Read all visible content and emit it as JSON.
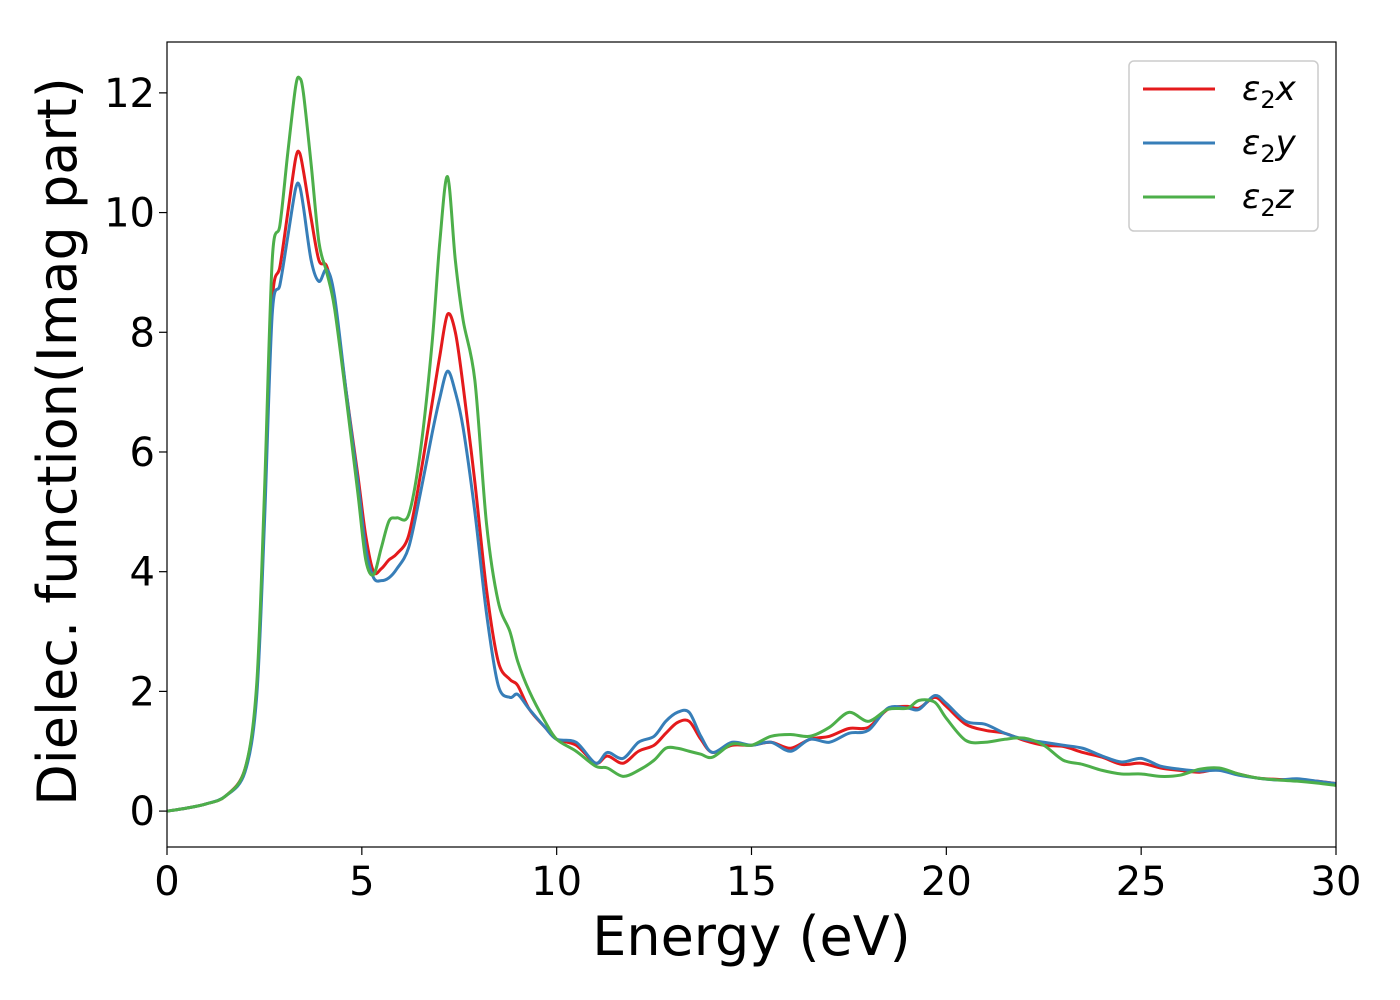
{
  "chart_data": {
    "type": "line",
    "title": "",
    "xlabel": "Energy (eV)",
    "ylabel": "Dielec. function(Imag part)",
    "xlim": [
      0,
      30
    ],
    "ylim": [
      -0.6,
      12.85
    ],
    "xticks": [
      0,
      5,
      10,
      15,
      20,
      25,
      30
    ],
    "yticks": [
      0,
      2,
      4,
      6,
      8,
      10,
      12
    ],
    "grid": false,
    "legend_position": "top-right",
    "series": [
      {
        "name": "ε2x",
        "legend": {
          "base": "ε",
          "sub": "2",
          "tail": "x"
        },
        "color": "#e41a1c",
        "points": [
          [
            0,
            0
          ],
          [
            0.5,
            0.05
          ],
          [
            1.0,
            0.12
          ],
          [
            1.5,
            0.25
          ],
          [
            2.0,
            0.7
          ],
          [
            2.3,
            2.0
          ],
          [
            2.5,
            5.0
          ],
          [
            2.7,
            8.5
          ],
          [
            2.9,
            9.1
          ],
          [
            3.1,
            10.0
          ],
          [
            3.3,
            10.9
          ],
          [
            3.4,
            11.0
          ],
          [
            3.5,
            10.7
          ],
          [
            3.7,
            9.9
          ],
          [
            3.9,
            9.2
          ],
          [
            4.1,
            9.1
          ],
          [
            4.3,
            8.5
          ],
          [
            4.6,
            7.0
          ],
          [
            4.9,
            5.6
          ],
          [
            5.1,
            4.6
          ],
          [
            5.3,
            4.0
          ],
          [
            5.5,
            4.05
          ],
          [
            5.7,
            4.2
          ],
          [
            5.9,
            4.3
          ],
          [
            6.2,
            4.6
          ],
          [
            6.5,
            5.6
          ],
          [
            6.8,
            6.8
          ],
          [
            7.0,
            7.6
          ],
          [
            7.2,
            8.3
          ],
          [
            7.4,
            8.0
          ],
          [
            7.6,
            7.1
          ],
          [
            7.9,
            5.5
          ],
          [
            8.2,
            3.7
          ],
          [
            8.5,
            2.5
          ],
          [
            8.8,
            2.2
          ],
          [
            9.0,
            2.1
          ],
          [
            9.3,
            1.7
          ],
          [
            9.7,
            1.4
          ],
          [
            10.0,
            1.2
          ],
          [
            10.5,
            1.1
          ],
          [
            11.0,
            0.8
          ],
          [
            11.3,
            0.92
          ],
          [
            11.7,
            0.8
          ],
          [
            12.1,
            1.0
          ],
          [
            12.5,
            1.1
          ],
          [
            12.8,
            1.3
          ],
          [
            13.1,
            1.48
          ],
          [
            13.4,
            1.5
          ],
          [
            13.7,
            1.2
          ],
          [
            14.0,
            0.98
          ],
          [
            14.5,
            1.1
          ],
          [
            15.0,
            1.1
          ],
          [
            15.5,
            1.15
          ],
          [
            16.0,
            1.05
          ],
          [
            16.5,
            1.2
          ],
          [
            17.0,
            1.25
          ],
          [
            17.5,
            1.38
          ],
          [
            18.0,
            1.4
          ],
          [
            18.5,
            1.7
          ],
          [
            19.0,
            1.75
          ],
          [
            19.3,
            1.72
          ],
          [
            19.7,
            1.9
          ],
          [
            20.0,
            1.75
          ],
          [
            20.5,
            1.45
          ],
          [
            21.0,
            1.35
          ],
          [
            21.5,
            1.3
          ],
          [
            22.0,
            1.18
          ],
          [
            22.5,
            1.1
          ],
          [
            23.0,
            1.08
          ],
          [
            23.5,
            0.98
          ],
          [
            24.0,
            0.9
          ],
          [
            24.5,
            0.78
          ],
          [
            25.0,
            0.8
          ],
          [
            25.5,
            0.72
          ],
          [
            26.0,
            0.68
          ],
          [
            26.5,
            0.65
          ],
          [
            27.0,
            0.7
          ],
          [
            27.5,
            0.62
          ],
          [
            28.0,
            0.55
          ],
          [
            28.5,
            0.53
          ],
          [
            29.0,
            0.52
          ],
          [
            29.5,
            0.5
          ],
          [
            30.0,
            0.46
          ]
        ]
      },
      {
        "name": "ε2y",
        "legend": {
          "base": "ε",
          "sub": "2",
          "tail": "y"
        },
        "color": "#377eb8",
        "points": [
          [
            0,
            0
          ],
          [
            0.5,
            0.05
          ],
          [
            1.0,
            0.12
          ],
          [
            1.5,
            0.25
          ],
          [
            2.0,
            0.65
          ],
          [
            2.3,
            1.9
          ],
          [
            2.5,
            4.8
          ],
          [
            2.7,
            8.3
          ],
          [
            2.9,
            8.8
          ],
          [
            3.1,
            9.6
          ],
          [
            3.3,
            10.4
          ],
          [
            3.4,
            10.45
          ],
          [
            3.5,
            10.1
          ],
          [
            3.7,
            9.2
          ],
          [
            3.9,
            8.85
          ],
          [
            4.1,
            9.05
          ],
          [
            4.3,
            8.6
          ],
          [
            4.6,
            7.0
          ],
          [
            4.9,
            5.5
          ],
          [
            5.1,
            4.4
          ],
          [
            5.3,
            3.9
          ],
          [
            5.5,
            3.85
          ],
          [
            5.7,
            3.9
          ],
          [
            5.9,
            4.05
          ],
          [
            6.2,
            4.4
          ],
          [
            6.5,
            5.3
          ],
          [
            6.8,
            6.3
          ],
          [
            7.0,
            6.9
          ],
          [
            7.2,
            7.35
          ],
          [
            7.4,
            7.0
          ],
          [
            7.6,
            6.4
          ],
          [
            7.9,
            5.0
          ],
          [
            8.2,
            3.3
          ],
          [
            8.5,
            2.1
          ],
          [
            8.8,
            1.9
          ],
          [
            9.0,
            1.95
          ],
          [
            9.3,
            1.7
          ],
          [
            9.7,
            1.4
          ],
          [
            10.0,
            1.2
          ],
          [
            10.5,
            1.15
          ],
          [
            11.0,
            0.8
          ],
          [
            11.3,
            0.98
          ],
          [
            11.7,
            0.88
          ],
          [
            12.1,
            1.15
          ],
          [
            12.5,
            1.25
          ],
          [
            12.8,
            1.5
          ],
          [
            13.1,
            1.65
          ],
          [
            13.4,
            1.65
          ],
          [
            13.7,
            1.25
          ],
          [
            14.0,
            0.98
          ],
          [
            14.5,
            1.15
          ],
          [
            15.0,
            1.1
          ],
          [
            15.5,
            1.15
          ],
          [
            16.0,
            1.0
          ],
          [
            16.5,
            1.2
          ],
          [
            17.0,
            1.15
          ],
          [
            17.5,
            1.3
          ],
          [
            18.0,
            1.35
          ],
          [
            18.5,
            1.72
          ],
          [
            19.0,
            1.72
          ],
          [
            19.3,
            1.7
          ],
          [
            19.7,
            1.93
          ],
          [
            20.0,
            1.8
          ],
          [
            20.5,
            1.5
          ],
          [
            21.0,
            1.45
          ],
          [
            21.5,
            1.3
          ],
          [
            22.0,
            1.2
          ],
          [
            22.5,
            1.15
          ],
          [
            23.0,
            1.1
          ],
          [
            23.5,
            1.05
          ],
          [
            24.0,
            0.92
          ],
          [
            24.5,
            0.82
          ],
          [
            25.0,
            0.88
          ],
          [
            25.5,
            0.75
          ],
          [
            26.0,
            0.7
          ],
          [
            26.5,
            0.67
          ],
          [
            27.0,
            0.68
          ],
          [
            27.5,
            0.6
          ],
          [
            28.0,
            0.55
          ],
          [
            28.5,
            0.52
          ],
          [
            29.0,
            0.54
          ],
          [
            29.5,
            0.5
          ],
          [
            30.0,
            0.46
          ]
        ]
      },
      {
        "name": "ε2z",
        "legend": {
          "base": "ε",
          "sub": "2",
          "tail": "z"
        },
        "color": "#4daf4a",
        "points": [
          [
            0,
            0
          ],
          [
            0.5,
            0.05
          ],
          [
            1.0,
            0.12
          ],
          [
            1.5,
            0.25
          ],
          [
            2.0,
            0.7
          ],
          [
            2.3,
            2.1
          ],
          [
            2.5,
            5.3
          ],
          [
            2.7,
            9.2
          ],
          [
            2.9,
            9.8
          ],
          [
            3.1,
            11.0
          ],
          [
            3.3,
            12.1
          ],
          [
            3.4,
            12.25
          ],
          [
            3.5,
            12.0
          ],
          [
            3.7,
            10.8
          ],
          [
            3.9,
            9.5
          ],
          [
            4.1,
            9.0
          ],
          [
            4.3,
            8.4
          ],
          [
            4.6,
            6.9
          ],
          [
            4.9,
            5.3
          ],
          [
            5.1,
            4.2
          ],
          [
            5.3,
            3.95
          ],
          [
            5.5,
            4.4
          ],
          [
            5.7,
            4.85
          ],
          [
            5.9,
            4.9
          ],
          [
            6.2,
            4.95
          ],
          [
            6.5,
            6.0
          ],
          [
            6.8,
            7.8
          ],
          [
            7.0,
            9.5
          ],
          [
            7.2,
            10.6
          ],
          [
            7.4,
            9.2
          ],
          [
            7.6,
            8.2
          ],
          [
            7.9,
            7.2
          ],
          [
            8.2,
            4.8
          ],
          [
            8.5,
            3.5
          ],
          [
            8.8,
            3.0
          ],
          [
            9.0,
            2.5
          ],
          [
            9.3,
            2.0
          ],
          [
            9.7,
            1.5
          ],
          [
            10.0,
            1.2
          ],
          [
            10.5,
            1.0
          ],
          [
            11.0,
            0.75
          ],
          [
            11.3,
            0.72
          ],
          [
            11.7,
            0.58
          ],
          [
            12.1,
            0.68
          ],
          [
            12.5,
            0.85
          ],
          [
            12.8,
            1.05
          ],
          [
            13.1,
            1.05
          ],
          [
            13.4,
            1.0
          ],
          [
            13.7,
            0.95
          ],
          [
            14.0,
            0.9
          ],
          [
            14.5,
            1.12
          ],
          [
            15.0,
            1.1
          ],
          [
            15.5,
            1.25
          ],
          [
            16.0,
            1.28
          ],
          [
            16.5,
            1.25
          ],
          [
            17.0,
            1.4
          ],
          [
            17.5,
            1.65
          ],
          [
            18.0,
            1.5
          ],
          [
            18.5,
            1.7
          ],
          [
            19.0,
            1.72
          ],
          [
            19.3,
            1.85
          ],
          [
            19.7,
            1.82
          ],
          [
            20.0,
            1.55
          ],
          [
            20.5,
            1.18
          ],
          [
            21.0,
            1.15
          ],
          [
            21.5,
            1.2
          ],
          [
            22.0,
            1.22
          ],
          [
            22.5,
            1.1
          ],
          [
            23.0,
            0.85
          ],
          [
            23.5,
            0.78
          ],
          [
            24.0,
            0.68
          ],
          [
            24.5,
            0.62
          ],
          [
            25.0,
            0.62
          ],
          [
            25.5,
            0.58
          ],
          [
            26.0,
            0.6
          ],
          [
            26.5,
            0.7
          ],
          [
            27.0,
            0.72
          ],
          [
            27.5,
            0.62
          ],
          [
            28.0,
            0.55
          ],
          [
            28.5,
            0.52
          ],
          [
            29.0,
            0.5
          ],
          [
            29.5,
            0.47
          ],
          [
            30.0,
            0.43
          ]
        ]
      }
    ]
  }
}
